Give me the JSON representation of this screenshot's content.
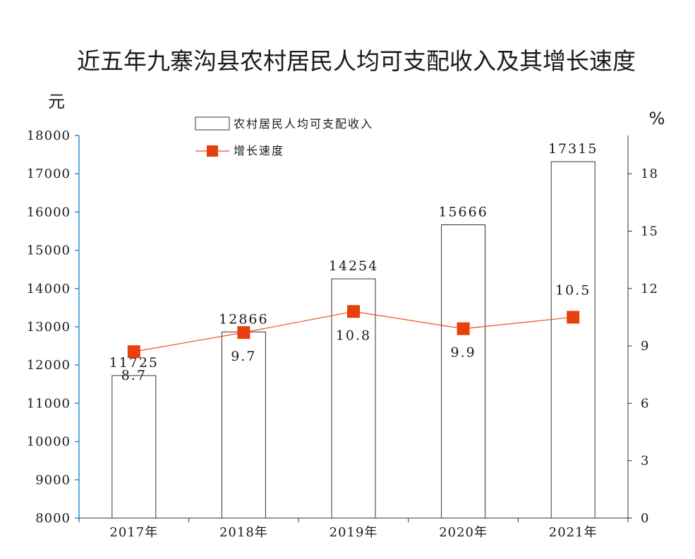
{
  "chart_data": {
    "type": "bar+line",
    "title": "近五年九寨沟县农村居民人均可支配收入及其增长速度",
    "categories": [
      "2017年",
      "2018年",
      "2019年",
      "2020年",
      "2021年"
    ],
    "series": [
      {
        "name": "农村居民人均可支配收入",
        "type": "bar",
        "axis": "left",
        "values": [
          11725,
          12866,
          14254,
          15666,
          17315
        ],
        "labels": [
          "11725",
          "12866",
          "14254",
          "15666",
          "17315"
        ]
      },
      {
        "name": "增长速度",
        "type": "line",
        "axis": "right",
        "values": [
          8.7,
          9.7,
          10.8,
          9.9,
          10.5
        ],
        "labels": [
          "8.7",
          "9.7",
          "10.8",
          "9.9",
          "10.5"
        ]
      }
    ],
    "y_left": {
      "unit": "元",
      "ylim": [
        8000,
        18000
      ],
      "ticks": [
        "8000",
        "9000",
        "10000",
        "11000",
        "12000",
        "13000",
        "14000",
        "15000",
        "16000",
        "17000",
        "18000"
      ]
    },
    "y_right": {
      "unit": "%",
      "ylim": [
        0,
        20
      ],
      "ticks": [
        "0",
        "3",
        "6",
        "9",
        "12",
        "15",
        "18"
      ]
    },
    "legend_placement": "top-center",
    "grid": false,
    "colors": {
      "line": "#e8501e",
      "marker": "#e8400c",
      "bar_edge": "#333333",
      "axis": "#2b8fd6"
    }
  }
}
